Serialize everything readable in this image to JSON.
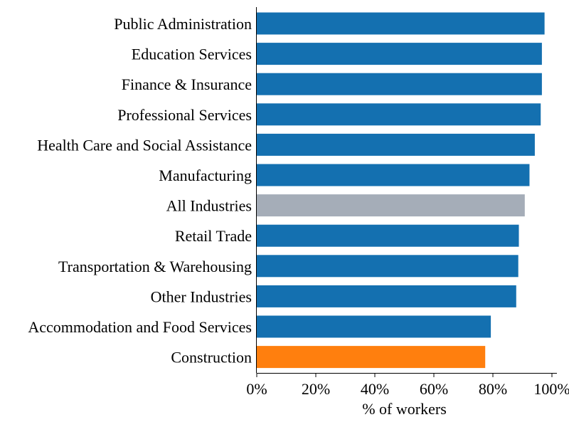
{
  "chart_data": {
    "type": "bar",
    "orientation": "horizontal",
    "title": "",
    "xlabel": "% of workers",
    "ylabel": "",
    "xlim": [
      0,
      100
    ],
    "x_ticks": [
      0,
      20,
      40,
      60,
      80,
      100
    ],
    "x_tick_labels": [
      "0%",
      "20%",
      "40%",
      "60%",
      "80%",
      "100%"
    ],
    "grid": false,
    "legend": "none",
    "categories": [
      "Public Administration",
      "Education Services",
      "Finance & Insurance",
      "Professional Services",
      "Health Care and Social Assistance",
      "Manufacturing",
      "All Industries",
      "Retail Trade",
      "Transportation & Warehousing",
      "Other Industries",
      "Accommodation and Food Services",
      "Construction"
    ],
    "values": [
      97.5,
      96.6,
      96.6,
      96.2,
      94.2,
      92.4,
      90.8,
      88.8,
      88.6,
      87.9,
      79.3,
      77.4
    ],
    "colors": [
      "#1470b0",
      "#1470b0",
      "#1470b0",
      "#1470b0",
      "#1470b0",
      "#1470b0",
      "#a5adb8",
      "#1470b0",
      "#1470b0",
      "#1470b0",
      "#1470b0",
      "#ff7f0e"
    ]
  }
}
